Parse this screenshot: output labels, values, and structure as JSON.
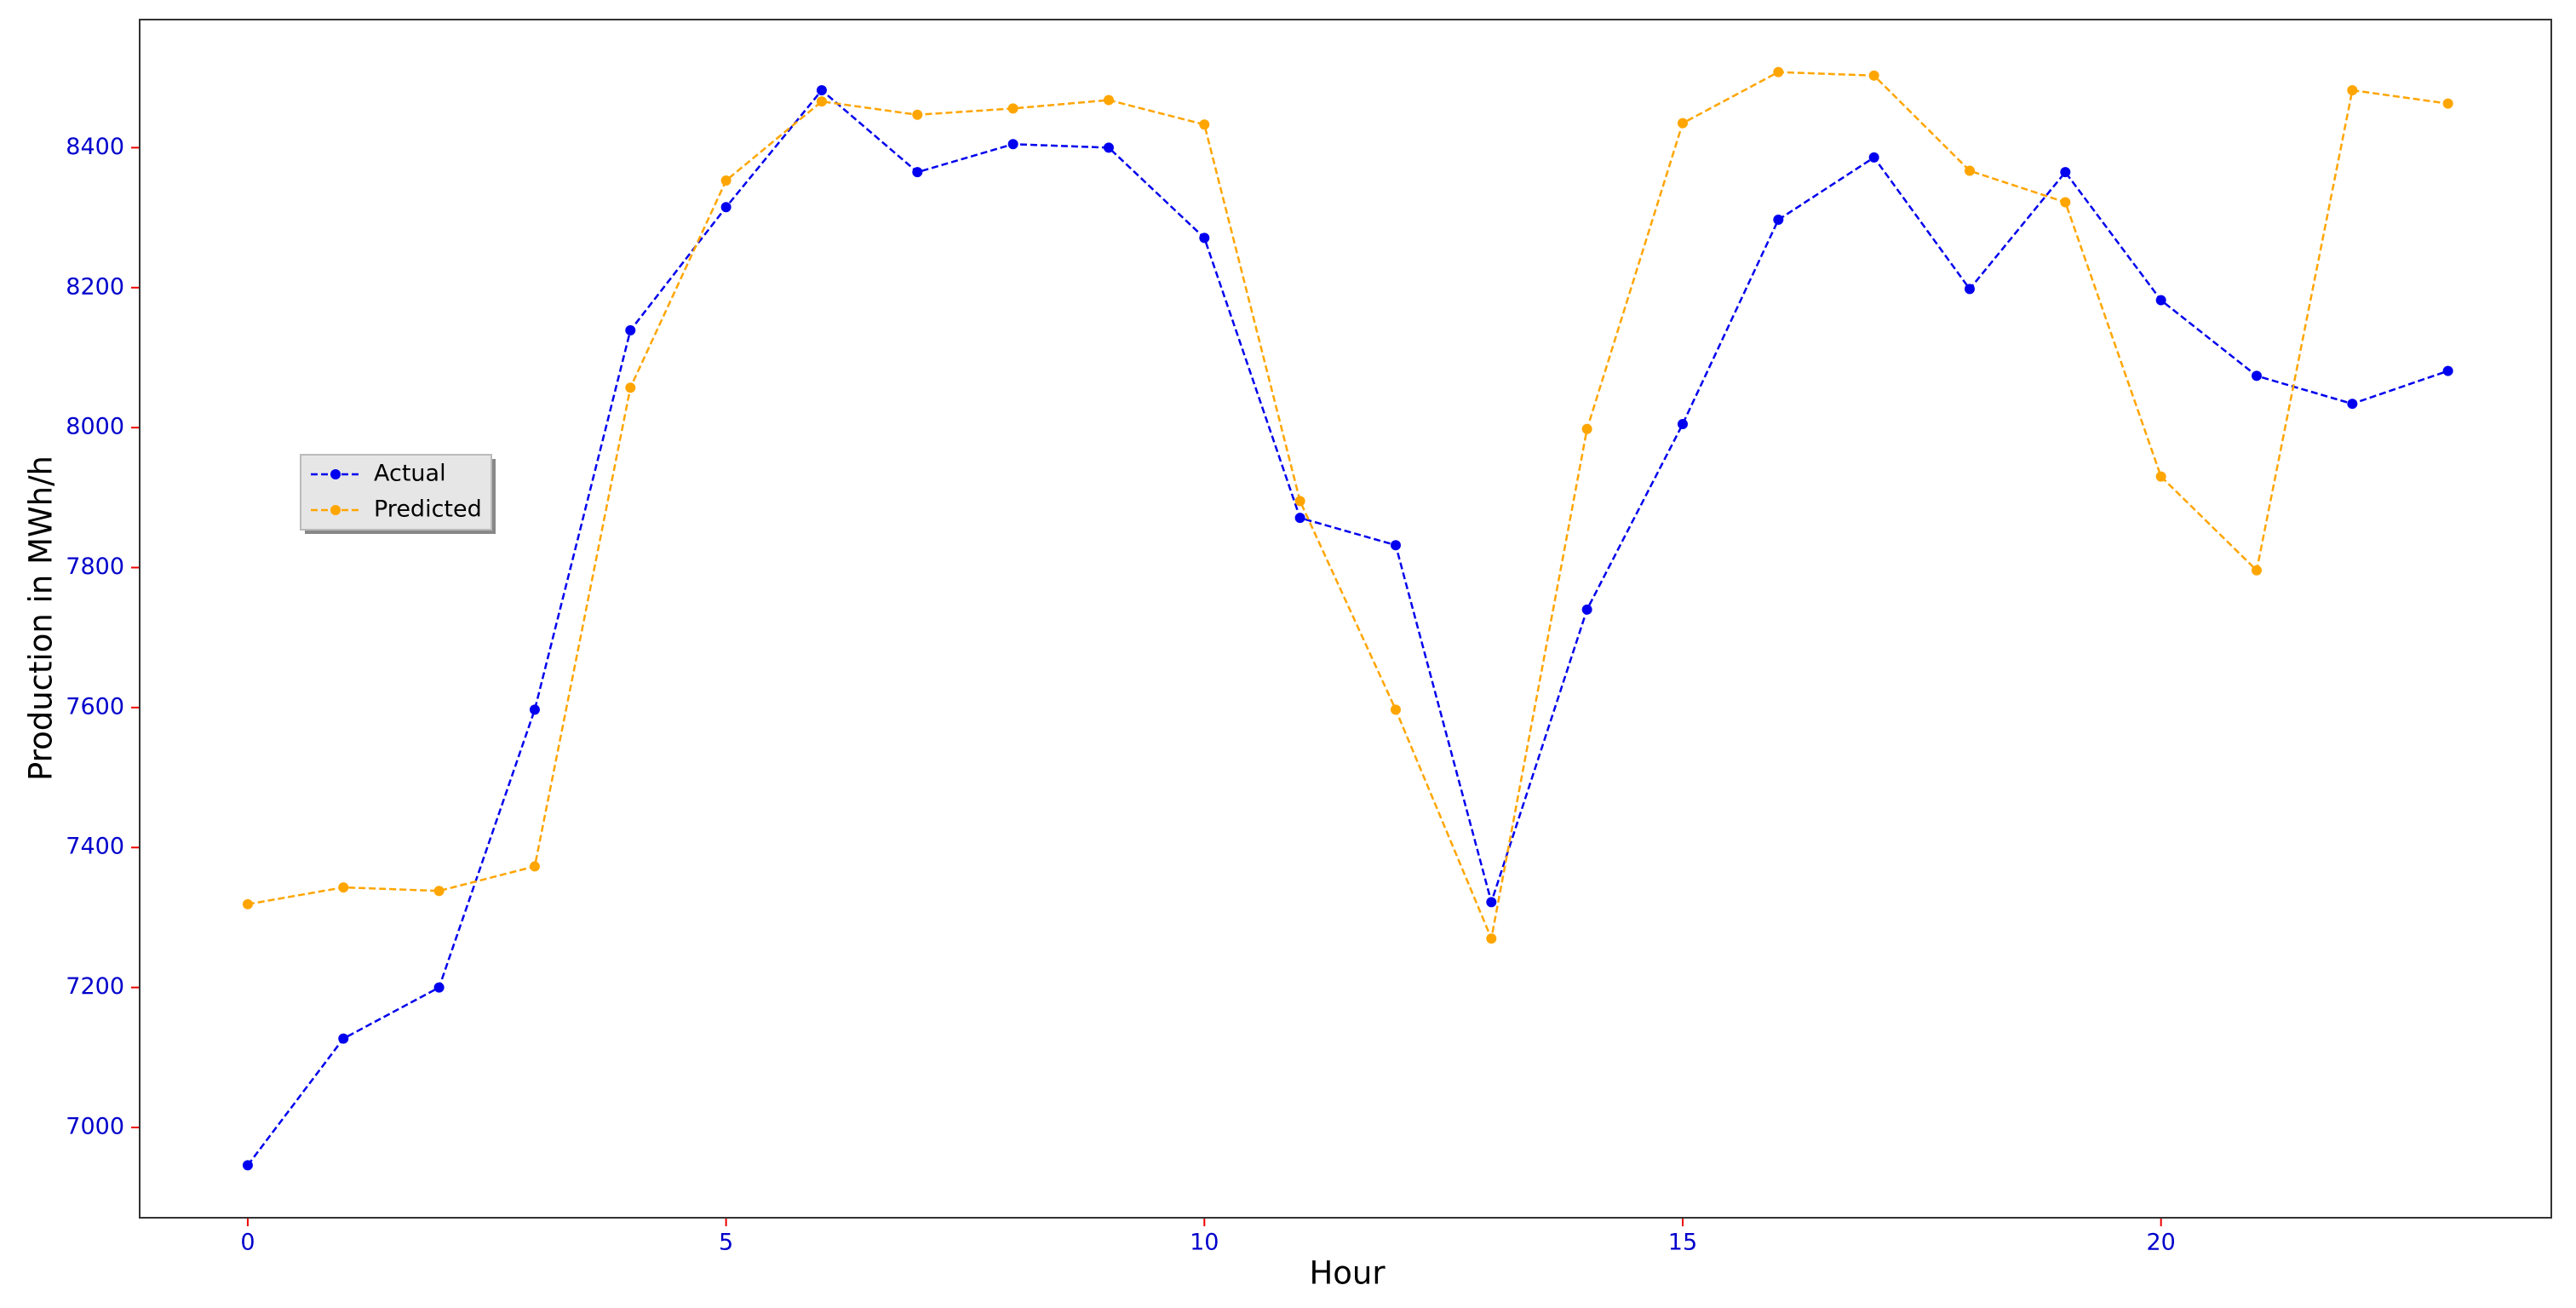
{
  "chart_data": {
    "type": "line",
    "xlabel": "Hour",
    "ylabel": "Production in MWh/h",
    "x": [
      0,
      1,
      2,
      3,
      4,
      5,
      6,
      7,
      8,
      9,
      10,
      11,
      12,
      13,
      14,
      15,
      16,
      17,
      18,
      19,
      20,
      21,
      22,
      23
    ],
    "series": [
      {
        "name": "Actual",
        "color": "#0000ee",
        "values": [
          6946,
          7127,
          7200,
          7597,
          8139,
          8315,
          8482,
          8365,
          8405,
          8400,
          8271,
          7871,
          7832,
          7322,
          7740,
          8005,
          8297,
          8386,
          8198,
          8365,
          8182,
          8074,
          8034,
          8081
        ]
      },
      {
        "name": "Predicted",
        "color": "#ffa500",
        "values": [
          7319,
          7343,
          7338,
          7373,
          8057,
          8353,
          8466,
          8447,
          8456,
          8468,
          8433,
          7895,
          7597,
          7270,
          7998,
          8435,
          8508,
          8503,
          8367,
          8322,
          7930,
          7796,
          8482,
          8463
        ]
      }
    ],
    "xlim": [
      -1.13,
      24.08
    ],
    "ylim": [
      6871,
      8583
    ],
    "xticks": [
      0,
      5,
      10,
      15,
      20
    ],
    "yticks": [
      7000,
      7200,
      7400,
      7600,
      7800,
      8000,
      8200,
      8400
    ],
    "grid": true,
    "legend": "center left"
  }
}
